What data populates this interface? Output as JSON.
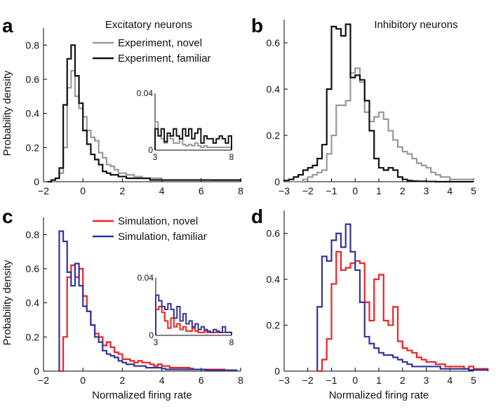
{
  "colors": {
    "exp_novel": "#999999",
    "exp_familiar": "#111111",
    "sim_novel": "#ee2222",
    "sim_familiar": "#333399"
  },
  "chart_data": [
    {
      "panel": "a",
      "type": "line",
      "title": "Excitatory neurons",
      "ylabel": "Probability density",
      "xlabel": "",
      "xlim": [
        -2,
        8
      ],
      "ylim": [
        0,
        0.9
      ],
      "xticks": [
        -2,
        0,
        2,
        4,
        6,
        8
      ],
      "yticks": [
        0,
        0.2,
        0.4,
        0.6,
        0.8
      ],
      "legend_placement": "top-right",
      "bin_width": 0.2,
      "x_start": -1.8,
      "series": [
        {
          "name": "Experiment, novel",
          "color_key": "exp_novel",
          "values": [
            0,
            0,
            0.02,
            0.05,
            0.2,
            0.55,
            0.65,
            0.5,
            0.43,
            0.38,
            0.3,
            0.26,
            0.24,
            0.17,
            0.14,
            0.1,
            0.09,
            0.07,
            0.05,
            0.05,
            0.04,
            0.04,
            0.03,
            0.03,
            0.02,
            0.02,
            0.02,
            0.02,
            0.02,
            0.01,
            0.01,
            0.01,
            0.01,
            0.01,
            0.01,
            0.01,
            0.01,
            0.01,
            0.01,
            0.01,
            0.01,
            0.01,
            0.005,
            0.005,
            0.005,
            0.005,
            0.005,
            0.005,
            0.005
          ]
        },
        {
          "name": "Experiment, familiar",
          "color_key": "exp_familiar",
          "values": [
            0,
            0.01,
            0.02,
            0.08,
            0.45,
            0.72,
            0.8,
            0.62,
            0.46,
            0.3,
            0.22,
            0.16,
            0.13,
            0.1,
            0.06,
            0.05,
            0.04,
            0.04,
            0.03,
            0.03,
            0.02,
            0.02,
            0.02,
            0.02,
            0.02,
            0.02,
            0.01,
            0.01,
            0.01,
            0.01,
            0.01,
            0.01,
            0.01,
            0.01,
            0.01,
            0.01,
            0.01,
            0.01,
            0.01,
            0.01,
            0.01,
            0.01,
            0.01,
            0.01,
            0.01,
            0.01,
            0.01,
            0.01,
            0.01
          ]
        }
      ],
      "inset": {
        "xlim": [
          3,
          8
        ],
        "ylim": [
          0,
          0.04
        ],
        "xticks": [
          3,
          8
        ],
        "yticks": [
          0,
          0.04
        ],
        "bin_width": 0.2,
        "series": [
          {
            "name": "Experiment, novel",
            "color_key": "exp_novel",
            "values": [
              0.02,
              0.01,
              0.008,
              0.005,
              0.01,
              0.008,
              0.005,
              0.005,
              0.008,
              0.004,
              0.003,
              0.004,
              0.003,
              0.005,
              0.003,
              0.002,
              0.003,
              0.002,
              0.002,
              0.002,
              0.002,
              0.002,
              0.002,
              0.002,
              0.002
            ]
          },
          {
            "name": "Experiment, familiar",
            "color_key": "exp_familiar",
            "values": [
              0.015,
              0.01,
              0.015,
              0.006,
              0.012,
              0.01,
              0.015,
              0.01,
              0.008,
              0.015,
              0.01,
              0.015,
              0.008,
              0.012,
              0.015,
              0.005,
              0.01,
              0.008,
              0.008,
              0.005,
              0.008,
              0.01,
              0.008,
              0.005,
              0.01
            ]
          }
        ]
      }
    },
    {
      "panel": "b",
      "type": "line",
      "title": "Inhibitory neurons",
      "ylabel": "",
      "xlabel": "",
      "xlim": [
        -3,
        5
      ],
      "ylim": [
        0,
        0.7
      ],
      "xticks": [
        -3,
        -2,
        -1,
        0,
        1,
        2,
        3,
        4,
        5
      ],
      "yticks": [
        0,
        0.2,
        0.4,
        0.6
      ],
      "bin_width": 0.2,
      "x_start": -3.0,
      "series": [
        {
          "name": "Experiment, novel",
          "color_key": "exp_novel",
          "values": [
            0,
            0,
            0,
            0,
            0.01,
            0.02,
            0.03,
            0.04,
            0.05,
            0.12,
            0.2,
            0.33,
            0.33,
            0.35,
            0.47,
            0.49,
            0.43,
            0.3,
            0.26,
            0.28,
            0.3,
            0.27,
            0.22,
            0.18,
            0.15,
            0.13,
            0.12,
            0.1,
            0.08,
            0.07,
            0.06,
            0.04,
            0.03,
            0.02,
            0.02,
            0.01,
            0.01,
            0.01,
            0.01,
            0.01
          ]
        },
        {
          "name": "Experiment, familiar",
          "color_key": "exp_familiar",
          "values": [
            0.005,
            0.01,
            0.02,
            0.03,
            0.05,
            0.06,
            0.07,
            0.1,
            0.16,
            0.4,
            0.67,
            0.66,
            0.63,
            0.68,
            0.45,
            0.46,
            0.44,
            0.35,
            0.22,
            0.1,
            0.06,
            0.05,
            0.06,
            0.05,
            0.02,
            0.01,
            0.005,
            0.003,
            0.002,
            0.002,
            0.001,
            0.001,
            0,
            0,
            0,
            0,
            0,
            0,
            0,
            0
          ]
        }
      ]
    },
    {
      "panel": "c",
      "type": "line",
      "title": "",
      "ylabel": "Probability density",
      "xlabel": "Normalized firing rate",
      "xlim": [
        -2,
        8
      ],
      "ylim": [
        0,
        0.9
      ],
      "xticks": [
        -2,
        0,
        2,
        4,
        6,
        8
      ],
      "yticks": [
        0,
        0.2,
        0.4,
        0.6,
        0.8
      ],
      "legend_placement": "top-right",
      "bin_width": 0.2,
      "x_start": -1.2,
      "series": [
        {
          "name": "Simulation, novel",
          "color_key": "sim_novel",
          "values": [
            0,
            0.2,
            0.55,
            0.62,
            0.55,
            0.6,
            0.44,
            0.35,
            0.27,
            0.22,
            0.2,
            0.15,
            0.17,
            0.14,
            0.11,
            0.1,
            0.07,
            0.07,
            0.06,
            0.05,
            0.06,
            0.05,
            0.05,
            0.04,
            0.03,
            0.04,
            0.03,
            0.03,
            0.02,
            0.02,
            0.02,
            0.02,
            0.02,
            0.015,
            0.01,
            0.01,
            0.01,
            0.01,
            0.01,
            0.01,
            0.01,
            0.01,
            0.005,
            0.005,
            0.005
          ]
        },
        {
          "name": "Simulation, familiar",
          "color_key": "sim_familiar",
          "values": [
            0.82,
            0.76,
            0.58,
            0.5,
            0.63,
            0.5,
            0.38,
            0.35,
            0.27,
            0.2,
            0.17,
            0.12,
            0.1,
            0.09,
            0.08,
            0.06,
            0.05,
            0.04,
            0.04,
            0.03,
            0.03,
            0.03,
            0.02,
            0.02,
            0.02,
            0.02,
            0.015,
            0.01,
            0.01,
            0.01,
            0.01,
            0.01,
            0.01,
            0.01,
            0.01,
            0.01,
            0.01,
            0.005,
            0.005,
            0.005,
            0.005,
            0.005,
            0.005,
            0.005,
            0.005
          ]
        }
      ],
      "inset": {
        "xlim": [
          3,
          8
        ],
        "ylim": [
          0,
          0.04
        ],
        "xticks": [
          3,
          8
        ],
        "yticks": [
          0,
          0.04
        ],
        "bin_width": 0.2,
        "series": [
          {
            "name": "Simulation, novel",
            "color_key": "sim_novel",
            "values": [
              0.018,
              0.02,
              0.016,
              0.01,
              0.005,
              0.012,
              0.006,
              0.008,
              0.004,
              0.006,
              0.003,
              0.003,
              0.005,
              0.003,
              0.002,
              0.002,
              0.003,
              0.002,
              0.002,
              0.002,
              0.002,
              0.002,
              0.002,
              0.002,
              0.002
            ]
          },
          {
            "name": "Simulation, familiar",
            "color_key": "sim_familiar",
            "values": [
              0.028,
              0.024,
              0.02,
              0.018,
              0.022,
              0.018,
              0.012,
              0.02,
              0.01,
              0.015,
              0.008,
              0.01,
              0.006,
              0.008,
              0.004,
              0.006,
              0.004,
              0.003,
              0.002,
              0.004,
              0.003,
              0.002,
              0.006,
              0.002,
              0.002
            ]
          }
        ]
      }
    },
    {
      "panel": "d",
      "type": "line",
      "title": "",
      "ylabel": "",
      "xlabel": "Normalized firing rate",
      "xlim": [
        -3,
        5
      ],
      "ylim": [
        0,
        0.7
      ],
      "xticks": [
        -3,
        -2,
        -1,
        0,
        1,
        2,
        3,
        4,
        5
      ],
      "yticks": [
        0,
        0.2,
        0.4,
        0.6
      ],
      "bin_width": 0.2,
      "x_start": -1.6,
      "series": [
        {
          "name": "Simulation, novel",
          "color_key": "sim_novel",
          "values": [
            0,
            0.05,
            0.14,
            0.38,
            0.52,
            0.44,
            0.45,
            0.47,
            0.48,
            0.47,
            0.3,
            0.22,
            0.4,
            0.42,
            0.22,
            0.2,
            0.28,
            0.13,
            0.1,
            0.09,
            0.08,
            0.06,
            0.05,
            0.04,
            0.04,
            0.03,
            0.03,
            0.02,
            0.02,
            0.02,
            0.02,
            0.01,
            0.02,
            0.01,
            0.01,
            0.01
          ]
        },
        {
          "name": "Simulation, familiar",
          "color_key": "sim_familiar",
          "values": [
            0.28,
            0.5,
            0.48,
            0.57,
            0.6,
            0.54,
            0.64,
            0.52,
            0.44,
            0.3,
            0.15,
            0.12,
            0.1,
            0.08,
            0.07,
            0.07,
            0.06,
            0.05,
            0.04,
            0.03,
            0.02,
            0.02,
            0.02,
            0.02,
            0.02,
            0.02,
            0.01,
            0.01,
            0.01,
            0.01,
            0.01,
            0.01,
            0.005,
            0.005,
            0.005,
            0.005
          ]
        }
      ]
    }
  ]
}
